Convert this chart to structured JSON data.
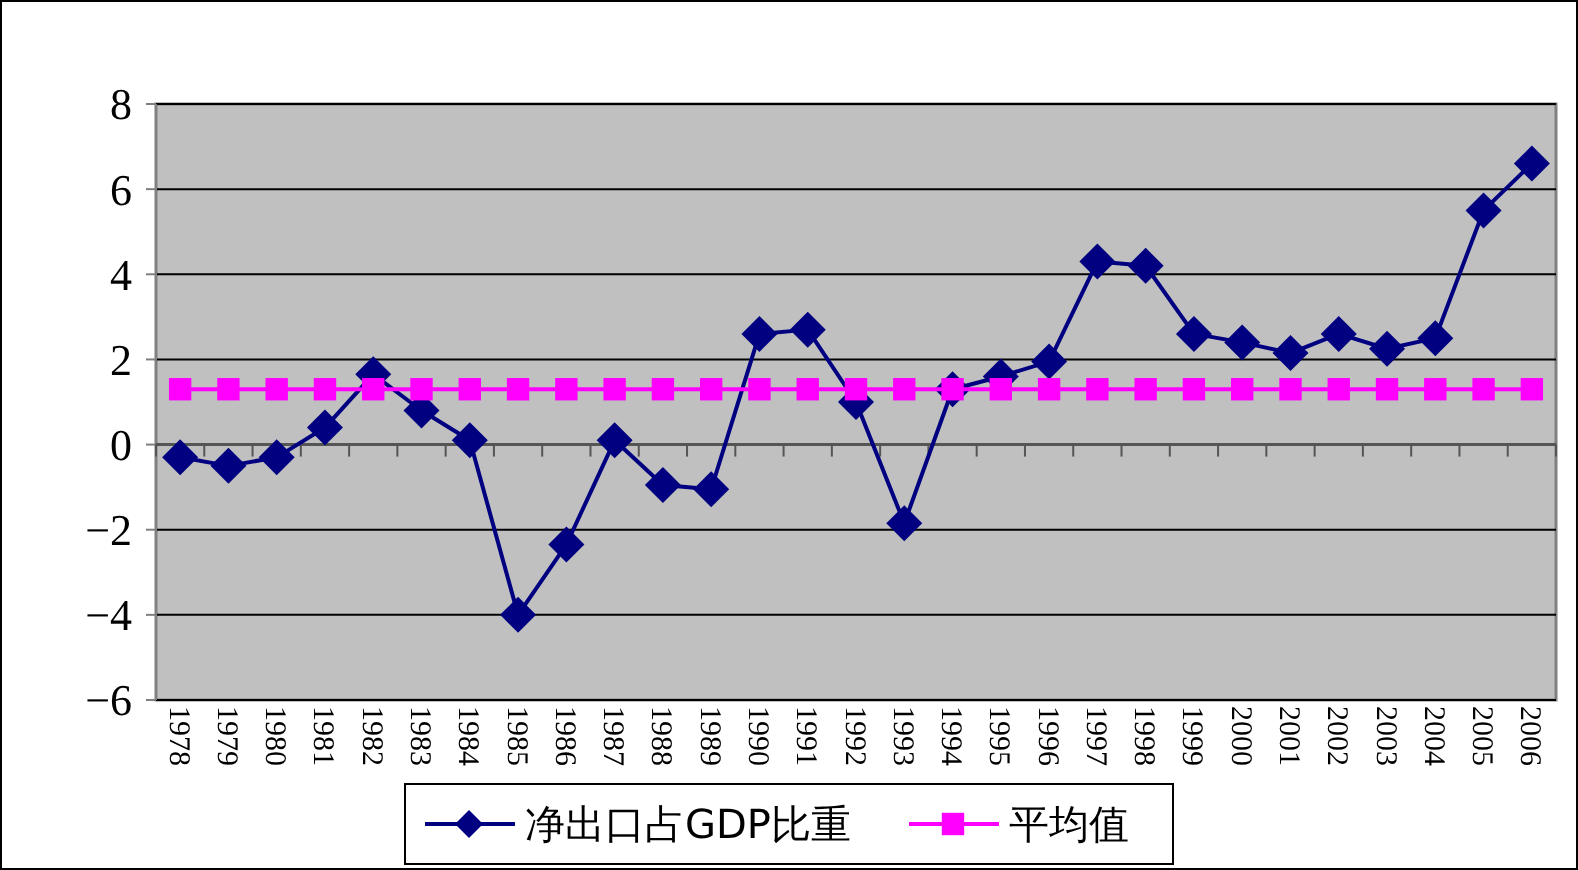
{
  "chart_data": {
    "type": "line",
    "categories": [
      "1978",
      "1979",
      "1980",
      "1981",
      "1982",
      "1983",
      "1984",
      "1985",
      "1986",
      "1987",
      "1988",
      "1989",
      "1990",
      "1991",
      "1992",
      "1993",
      "1994",
      "1995",
      "1996",
      "1997",
      "1998",
      "1999",
      "2000",
      "2001",
      "2002",
      "2003",
      "2004",
      "2005",
      "2006"
    ],
    "series": [
      {
        "name": "净出口占GDP比重",
        "color": "#000080",
        "marker": "diamond",
        "values": [
          -0.3,
          -0.5,
          -0.3,
          0.4,
          1.65,
          0.8,
          0.1,
          -4.0,
          -2.35,
          0.1,
          -0.95,
          -1.05,
          2.6,
          2.7,
          1.0,
          -1.85,
          1.3,
          1.6,
          1.95,
          4.3,
          4.2,
          2.6,
          2.4,
          2.15,
          2.6,
          2.25,
          2.5,
          5.5,
          6.6
        ]
      },
      {
        "name": "平均值",
        "color": "#ff00ff",
        "marker": "square",
        "values": [
          1.3,
          1.3,
          1.3,
          1.3,
          1.3,
          1.3,
          1.3,
          1.3,
          1.3,
          1.3,
          1.3,
          1.3,
          1.3,
          1.3,
          1.3,
          1.3,
          1.3,
          1.3,
          1.3,
          1.3,
          1.3,
          1.3,
          1.3,
          1.3,
          1.3,
          1.3,
          1.3,
          1.3,
          1.3
        ]
      }
    ],
    "ylim": [
      -6,
      8
    ],
    "yticks": [
      -6,
      -4,
      -2,
      0,
      2,
      4,
      6,
      8
    ],
    "grid": "y",
    "legend": "bottom"
  }
}
